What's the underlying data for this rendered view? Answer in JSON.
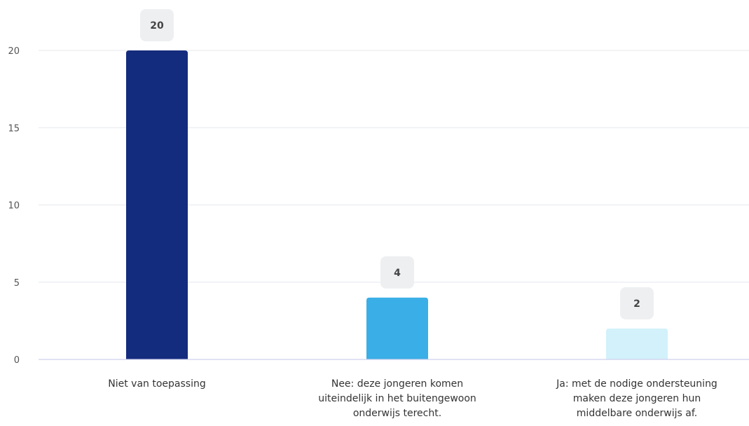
{
  "chart_data": {
    "type": "bar",
    "title": "",
    "xlabel": "",
    "ylabel": "",
    "ylim": [
      0,
      20
    ],
    "yticks": [
      0,
      5,
      10,
      15,
      20
    ],
    "grid": true,
    "categories": [
      [
        "Niet van toepassing"
      ],
      [
        "Nee: deze jongeren komen",
        "uiteindelijk in het buitengewoon",
        "onderwijs terecht."
      ],
      [
        "Ja: met de nodige ondersteuning",
        "maken deze jongeren hun",
        "middelbare onderwijs af."
      ]
    ],
    "values": [
      20,
      4,
      2
    ],
    "value_labels": [
      "20",
      "4",
      "2"
    ],
    "bar_colors": [
      "#142c7e",
      "#3aaee6",
      "#d2f1fa"
    ]
  }
}
